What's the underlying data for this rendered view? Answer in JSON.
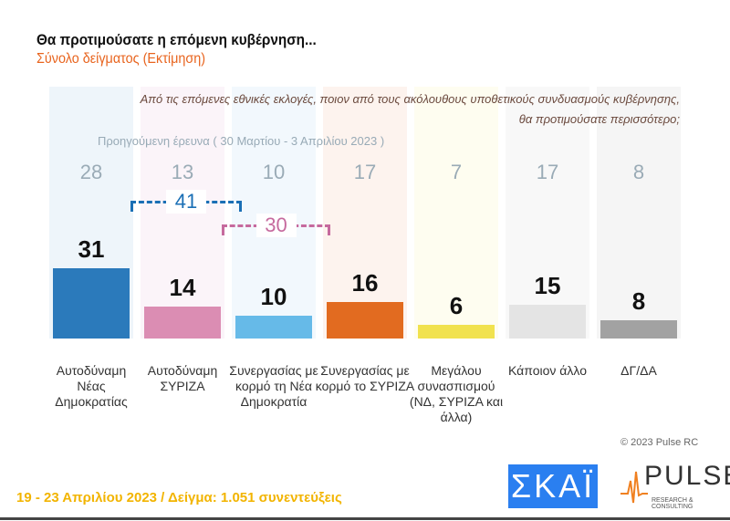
{
  "title": "Θα προτιμούσατε η επόμενη κυβέρνηση...",
  "subtitle": "Σύνολο δείγματος  (Εκτίμηση)",
  "question": "Από τις επόμενες εθνικές εκλογές, ποιον από τους ακόλουθους υποθετικούς συνδυασμούς κυβέρνησης, θα προτιμούσατε περισσότερο;",
  "previous_label": "Προηγούμενη έρευνα  ( 30 Μαρτίου - 3 Απριλίου  2023 )",
  "copyright": "© 2023 Pulse RC",
  "footer": "19 - 23  Απριλίου  2023  /  Δείγμα:  1.051 συνεντεύξεις",
  "logos": {
    "skai": "ΣΚΑΪ",
    "pulse": "PULSE",
    "pulse_sub": "RESEARCH & CONSULTING"
  },
  "chart_data": {
    "type": "bar",
    "title": "Θα προτιμούσατε η επόμενη κυβέρνηση...",
    "categories": [
      "Αυτοδύναμη Νέας Δημοκρατίας",
      "Αυτοδύναμη ΣΥΡΙΖΑ",
      "Συνεργασίας με κορμό τη Νέα Δημοκρατία",
      "Συνεργασίας με κορμό το ΣΥΡΙΖΑ",
      "Μεγάλου συνασπισμού (ΝΔ, ΣΥΡΙΖΑ και άλλα)",
      "Κάποιον άλλο",
      "ΔΓ/ΔΑ"
    ],
    "series": [
      {
        "values": [
          31,
          14,
          10,
          16,
          6,
          15,
          8
        ]
      },
      {
        "values": [
          28,
          13,
          10,
          17,
          7,
          17,
          8
        ]
      }
    ],
    "colors": [
      "#1a6fb5",
      "#d883ad",
      "#5ab4e6",
      "#e0600e",
      "#f0e040",
      "#e2e2e2",
      "#9a9a9a"
    ],
    "tints": [
      "#eef5fa",
      "#fbf4f9",
      "#f2f8fd",
      "#fdf3ee",
      "#fefdf0",
      "#f8f8f8",
      "#f5f5f5"
    ],
    "brackets": [
      {
        "label": "41",
        "from": 0,
        "to": 1,
        "color": "#1a6fb5"
      },
      {
        "label": "30",
        "from": 2,
        "to": 3,
        "color": "#c66a9e"
      }
    ],
    "ylim": [
      0,
      100
    ]
  }
}
